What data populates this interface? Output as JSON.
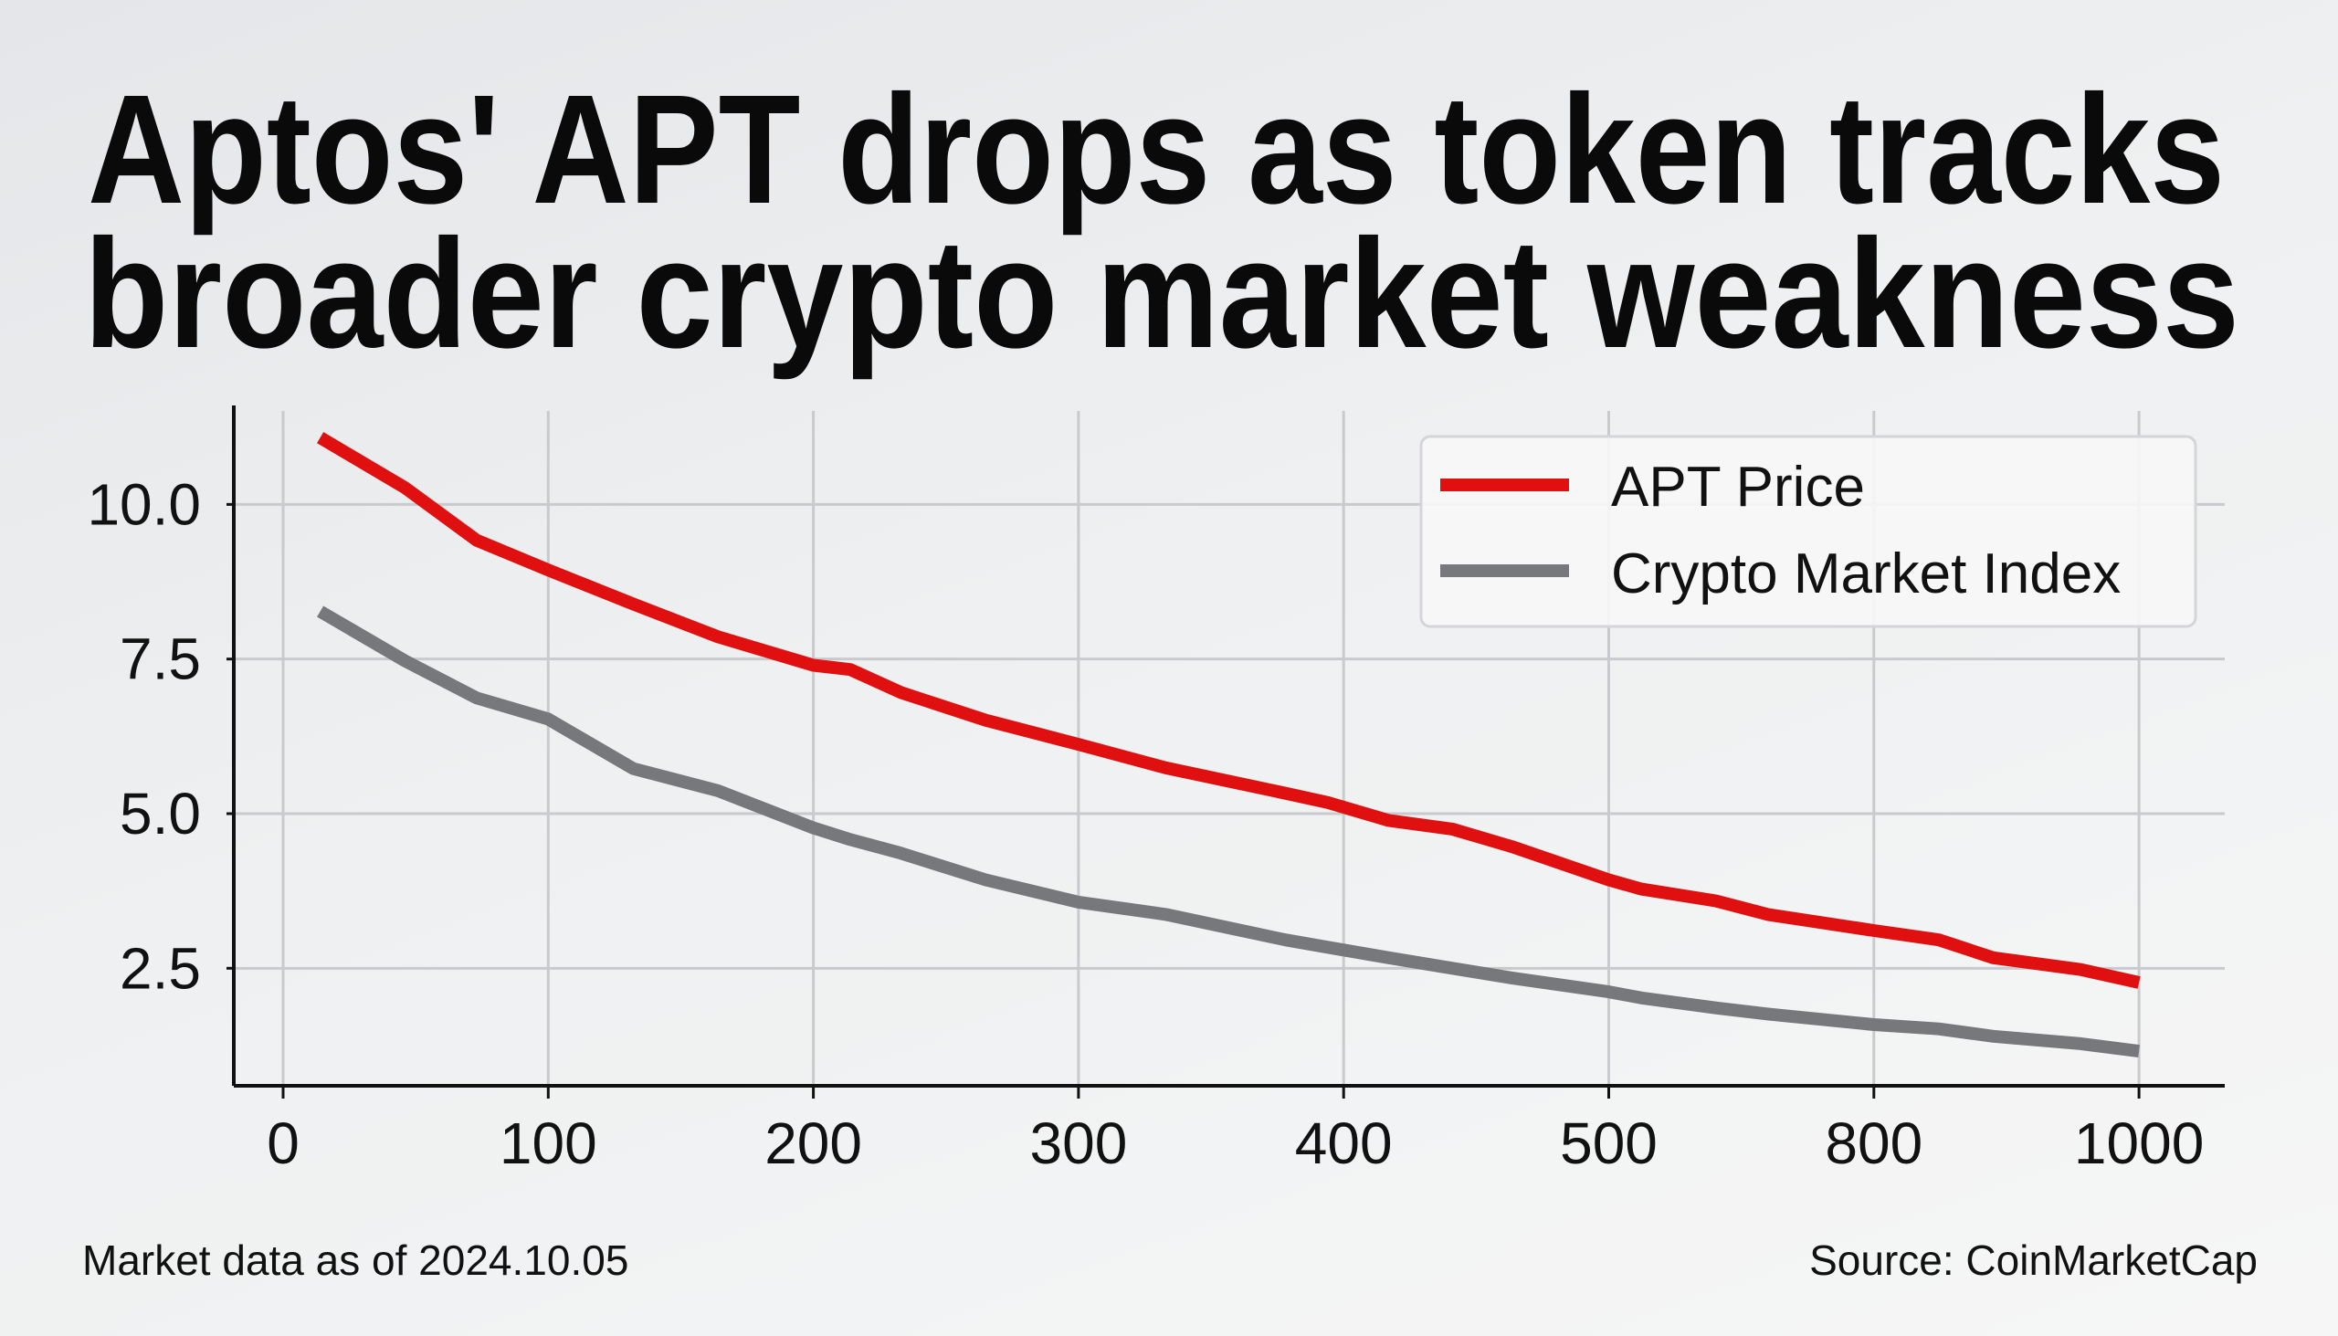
{
  "title_lines": [
    "Aptos' APT drops as token tracks",
    "broader crypto market weakness"
  ],
  "footer": {
    "left": "Market data as of 2024.10.05",
    "right": "Source: CoinMarketCap"
  },
  "chart_data": {
    "type": "line",
    "title": "Aptos' APT drops as token tracks broader crypto market weakness",
    "xlabel": "",
    "ylabel": "",
    "x_ticks": [
      0,
      100,
      200,
      300,
      400,
      500,
      800,
      1000
    ],
    "x_tick_labels": [
      "0",
      "100",
      "200",
      "300",
      "400",
      "500",
      "800",
      "1000"
    ],
    "x_scale": "ticks evenly spaced (non-linear labels)",
    "y_ticks": [
      2.5,
      5.0,
      7.5,
      10.0
    ],
    "y_tick_labels": [
      "2.5",
      "5.0",
      "7.5",
      "10.0"
    ],
    "ylim": [
      0.6,
      11.6
    ],
    "grid": true,
    "legend_position": "top-right",
    "series": [
      {
        "name": "APT Price",
        "color": "#e01010",
        "x": [
          14,
          46,
          73,
          100,
          132,
          164,
          200,
          214,
          233,
          265,
          300,
          333,
          378,
          394,
          417,
          441,
          464,
          500,
          537,
          621,
          680,
          800,
          849,
          890,
          956,
          1000
        ],
        "y": [
          11.08,
          10.27,
          9.42,
          8.94,
          8.39,
          7.86,
          7.4,
          7.33,
          6.96,
          6.51,
          6.12,
          5.74,
          5.33,
          5.18,
          4.89,
          4.75,
          4.46,
          3.93,
          3.78,
          3.59,
          3.37,
          3.11,
          2.96,
          2.67,
          2.48,
          2.27
        ]
      },
      {
        "name": "Crypto Market Index",
        "color": "#77787c",
        "x": [
          14,
          46,
          73,
          100,
          132,
          164,
          200,
          214,
          233,
          265,
          300,
          333,
          378,
          394,
          417,
          441,
          464,
          500,
          537,
          621,
          680,
          800,
          849,
          890,
          956,
          1000
        ],
        "y": [
          8.27,
          7.47,
          6.87,
          6.53,
          5.73,
          5.37,
          4.77,
          4.58,
          4.36,
          3.93,
          3.57,
          3.37,
          2.96,
          2.84,
          2.67,
          2.5,
          2.34,
          2.12,
          2.02,
          1.86,
          1.76,
          1.59,
          1.52,
          1.4,
          1.28,
          1.16
        ]
      }
    ]
  }
}
